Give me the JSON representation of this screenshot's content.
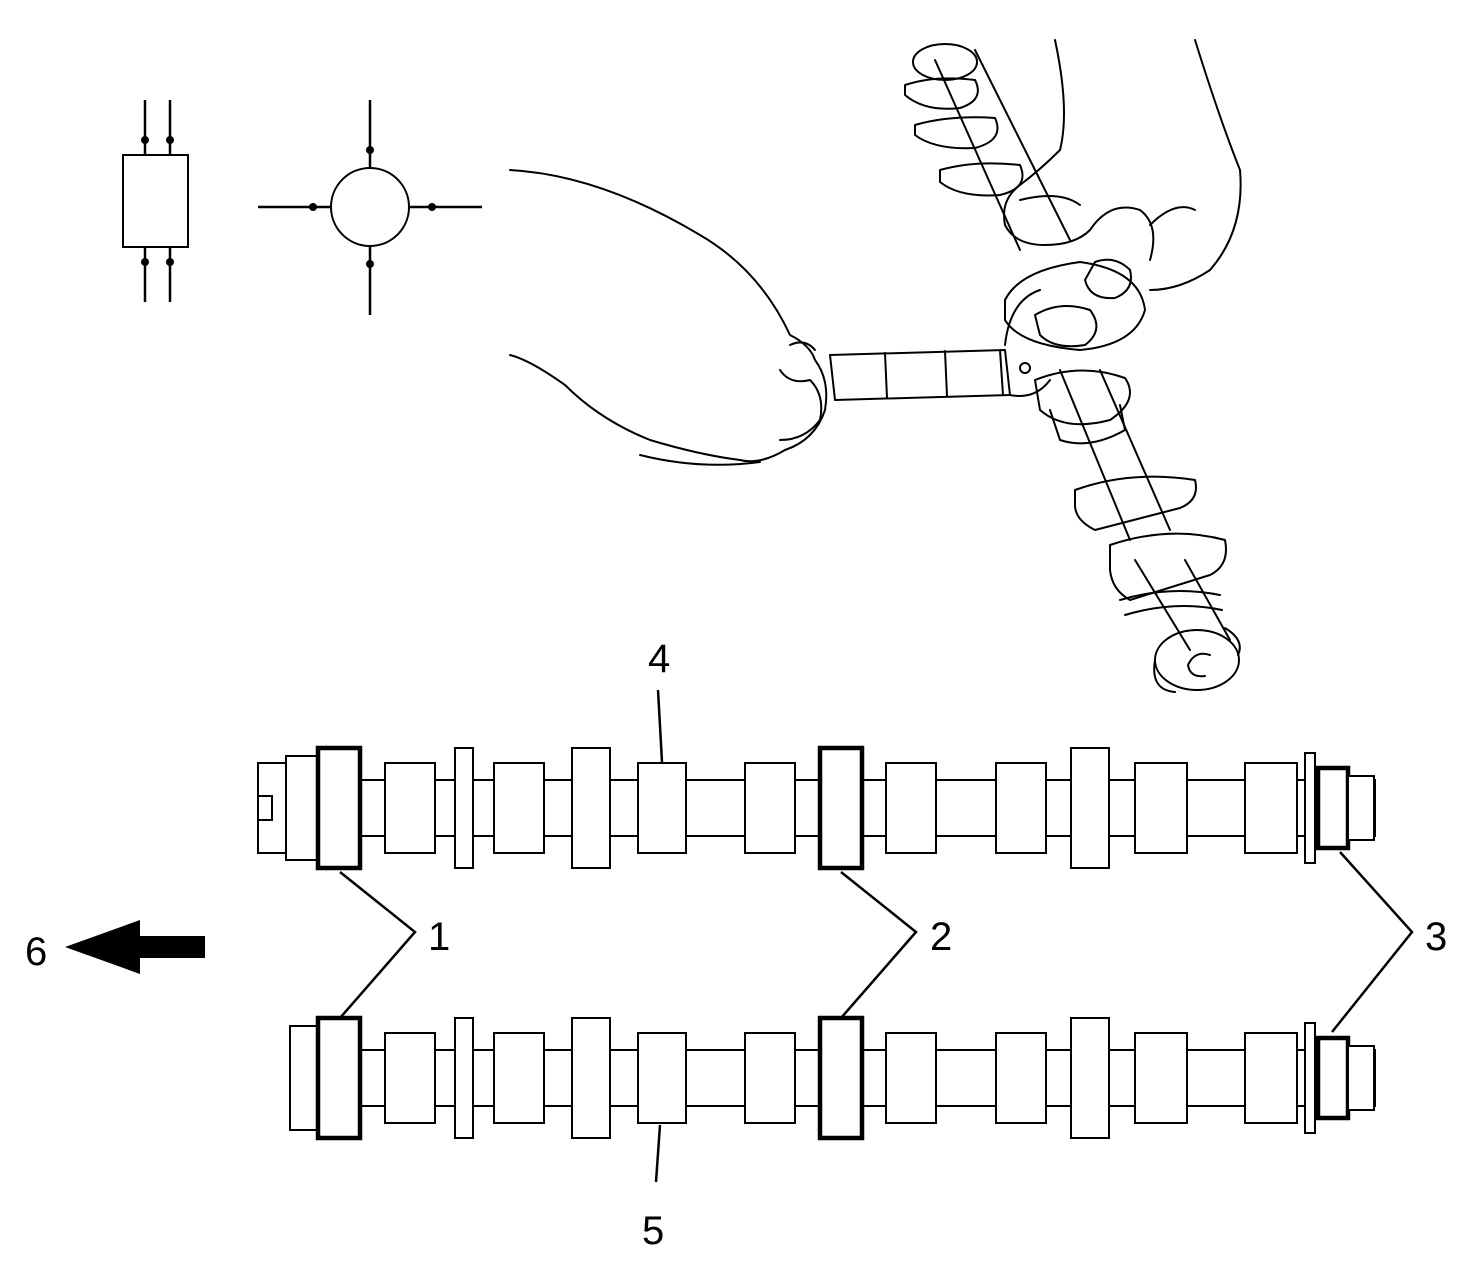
{
  "figure": {
    "callouts": {
      "journal_pair_1": "1",
      "journal_pair_2": "2",
      "journal_pair_3": "3",
      "upper_camshaft": "4",
      "lower_camshaft": "5",
      "direction": "6"
    },
    "icons": [
      "micrometer-symbol-rectangle-icon",
      "micrometer-symbol-circle-icon",
      "front-arrow-icon"
    ],
    "colors": {
      "ink": "#000000",
      "paper": "#ffffff"
    }
  }
}
